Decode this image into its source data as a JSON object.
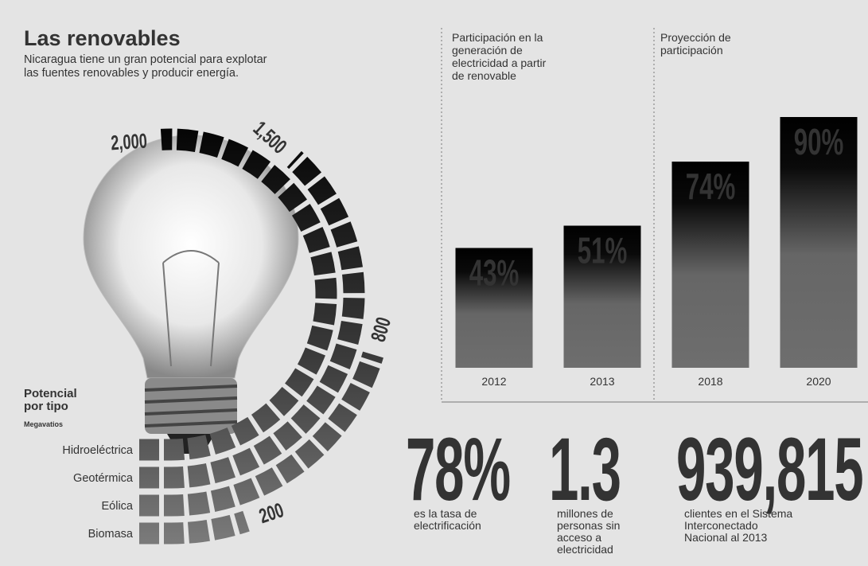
{
  "header": {
    "title": "Las renovables",
    "subtitle": [
      "Nicaragua tiene un gran potencial para explotar",
      "las fuentes renovables y producir energía."
    ]
  },
  "chart_data": [
    {
      "type": "radial_bar",
      "title": [
        "Potencial",
        "por tipo"
      ],
      "subtitle": "Megavatios",
      "categories": [
        "Hidroeléctrica",
        "Geotérmica",
        "Eólica",
        "Biomasa"
      ],
      "values": [
        2000,
        1500,
        800,
        200
      ],
      "value_labels": [
        "2,000",
        "1,500",
        "800",
        "200"
      ]
    },
    {
      "type": "bar",
      "section_titles": [
        [
          "Participación en la",
          "generación de",
          "electricidad a partir",
          "de renovable"
        ],
        [
          "Proyección de",
          "participación"
        ]
      ],
      "categories": [
        "2012",
        "2013",
        "2018",
        "2020"
      ],
      "values": [
        43,
        51,
        74,
        90
      ],
      "value_labels": [
        "43%",
        "51%",
        "74%",
        "90%"
      ],
      "ylim": [
        0,
        100
      ]
    }
  ],
  "stats": [
    {
      "value": "78%",
      "text": [
        "es la tasa de",
        "electrificación"
      ]
    },
    {
      "value": "1.3",
      "text": [
        "millones de",
        "personas sin",
        "acceso a",
        "electricidad"
      ]
    },
    {
      "value": "939,815",
      "text": [
        "clientes  en el Sistema",
        "Interconectado",
        "Nacional al 2013"
      ]
    }
  ]
}
